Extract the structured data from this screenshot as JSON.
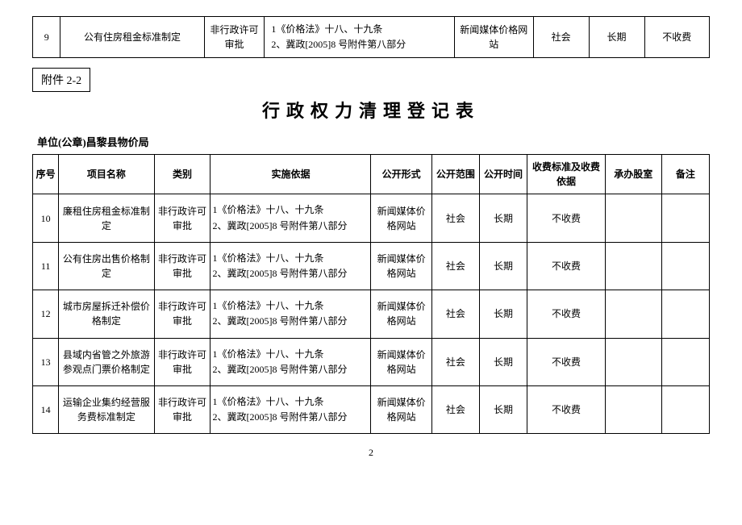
{
  "topTable": {
    "row": {
      "seq": "9",
      "name": "公有住房租金标准制定",
      "category": "非行政许可审批",
      "basis": "1《价格法》十八、十九条\n2、冀政[2005]8 号附件第八部分",
      "form": "新闻媒体价格网站",
      "scope": "社会",
      "time": "长期",
      "fee": "不收费"
    }
  },
  "attachment": "附件 2-2",
  "title": "行政权力清理登记表",
  "unitLabel": "单位(公章)昌黎县物价局",
  "headers": {
    "seq": "序号",
    "name": "项目名称",
    "category": "类别",
    "basis": "实施依据",
    "form": "公开形式",
    "scope": "公开范围",
    "time": "公开时间",
    "fee": "收费标准及收费依据",
    "dept": "承办股室",
    "remark": "备注"
  },
  "rows": [
    {
      "seq": "10",
      "name": "廉租住房租金标准制定",
      "category": "非行政许可审批",
      "basis": "1《价格法》十八、十九条\n2、冀政[2005]8 号附件第八部分",
      "form": "新闻媒体价格网站",
      "scope": "社会",
      "time": "长期",
      "fee": "不收费",
      "dept": "",
      "remark": ""
    },
    {
      "seq": "11",
      "name": "公有住房出售价格制定",
      "category": "非行政许可审批",
      "basis": "1《价格法》十八、十九条\n2、冀政[2005]8 号附件第八部分",
      "form": "新闻媒体价格网站",
      "scope": "社会",
      "time": "长期",
      "fee": "不收费",
      "dept": "",
      "remark": ""
    },
    {
      "seq": "12",
      "name": "城市房屋拆迁补偿价格制定",
      "category": "非行政许可审批",
      "basis": "1《价格法》十八、十九条\n2、冀政[2005]8 号附件第八部分",
      "form": "新闻媒体价格网站",
      "scope": "社会",
      "time": "长期",
      "fee": "不收费",
      "dept": "",
      "remark": ""
    },
    {
      "seq": "13",
      "name": "县域内省管之外旅游参观点门票价格制定",
      "category": "非行政许可审批",
      "basis": "1《价格法》十八、十九条\n2、冀政[2005]8 号附件第八部分",
      "form": "新闻媒体价格网站",
      "scope": "社会",
      "time": "长期",
      "fee": "不收费",
      "dept": "",
      "remark": ""
    },
    {
      "seq": "14",
      "name": "运输企业集约经营服务费标准制定",
      "category": "非行政许可审批",
      "basis": "1《价格法》十八、十九条\n2、冀政[2005]8 号附件第八部分",
      "form": "新闻媒体价格网站",
      "scope": "社会",
      "time": "长期",
      "fee": "不收费",
      "dept": "",
      "remark": ""
    }
  ],
  "pageNumber": "2",
  "columnWidths": {
    "seq": "30px",
    "name": "110px",
    "category": "65px",
    "basis": "185px",
    "form": "70px",
    "scope": "55px",
    "time": "55px",
    "fee": "90px",
    "dept": "65px",
    "remark": "55px"
  }
}
